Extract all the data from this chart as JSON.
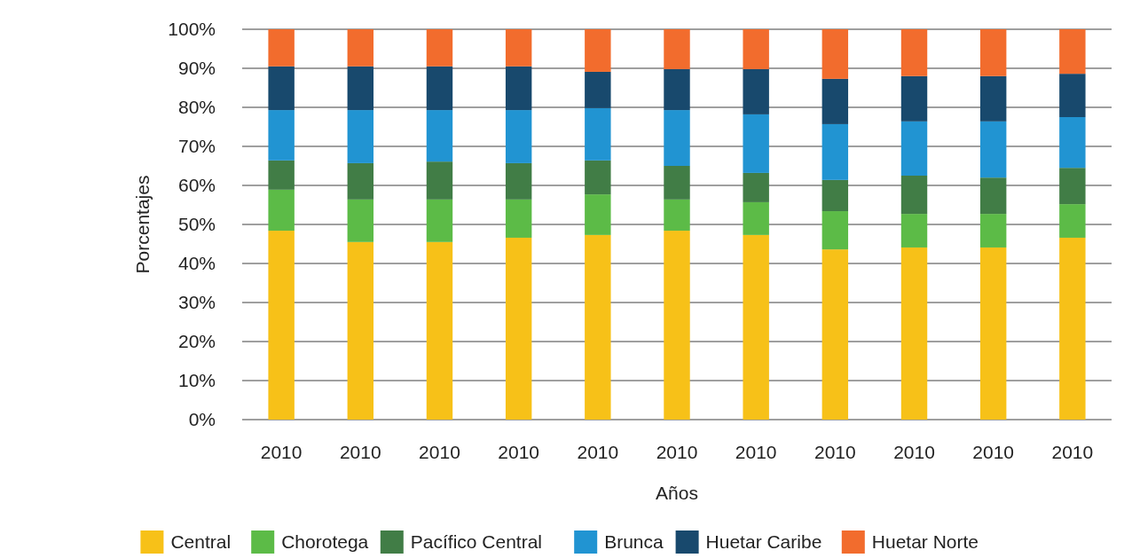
{
  "chart_data": {
    "type": "bar",
    "stacked": true,
    "xlabel": "Años",
    "ylabel": "Porcentajes",
    "categories": [
      "2010",
      "2010",
      "2010",
      "2010",
      "2010",
      "2010",
      "2010",
      "2010",
      "2010",
      "2010",
      "2010"
    ],
    "series": [
      {
        "name": "Central",
        "color": "#f7c118",
        "values": [
          48.4,
          45.5,
          45.5,
          46.6,
          47.3,
          48.4,
          47.3,
          43.6,
          44.1,
          44.1,
          46.6
        ]
      },
      {
        "name": "Chorotega",
        "color": "#5cbb47",
        "values": [
          10.5,
          10.9,
          10.9,
          9.8,
          10.4,
          8.0,
          8.4,
          9.8,
          8.6,
          8.6,
          8.6
        ]
      },
      {
        "name": "Pacífico Central",
        "color": "#417d46",
        "values": [
          7.5,
          9.3,
          9.7,
          9.3,
          8.7,
          8.6,
          7.5,
          8.0,
          9.8,
          9.3,
          9.3
        ]
      },
      {
        "name": "Brunca",
        "color": "#2194d2",
        "values": [
          12.9,
          13.6,
          13.2,
          13.6,
          13.4,
          14.3,
          15.0,
          14.3,
          13.9,
          14.4,
          13.0
        ]
      },
      {
        "name": "Huetar Caribe",
        "color": "#18496d",
        "values": [
          11.2,
          11.2,
          11.2,
          11.2,
          9.3,
          10.5,
          11.6,
          11.6,
          11.6,
          11.6,
          11.1
        ]
      },
      {
        "name": "Huetar Norte",
        "color": "#f26c2d",
        "values": [
          9.5,
          9.5,
          9.5,
          9.5,
          10.9,
          10.2,
          10.2,
          12.7,
          12.0,
          12.0,
          11.4
        ]
      }
    ],
    "ylim": [
      0,
      100
    ],
    "yticks": [
      {
        "value": 0,
        "label": "0%"
      },
      {
        "value": 10,
        "label": "10%"
      },
      {
        "value": 20,
        "label": "20%"
      },
      {
        "value": 30,
        "label": "30%"
      },
      {
        "value": 40,
        "label": "40%"
      },
      {
        "value": 50,
        "label": "50%"
      },
      {
        "value": 60,
        "label": "60%"
      },
      {
        "value": 70,
        "label": "70%"
      },
      {
        "value": 80,
        "label": "80%"
      },
      {
        "value": 90,
        "label": "90%"
      },
      {
        "value": 100,
        "label": "100%"
      }
    ],
    "grid": "y",
    "legend": "bottom"
  }
}
